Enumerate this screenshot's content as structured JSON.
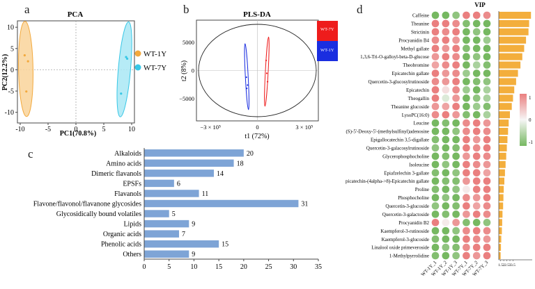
{
  "panels": {
    "a": "a",
    "b": "b",
    "c": "c",
    "d": "d"
  },
  "colors": {
    "wt1y": "#f3a93d",
    "wt1y_fill": "#f9d49a",
    "wt7y": "#37c7e6",
    "wt7y_fill": "#a9e8f5",
    "plsda_red": "#ee1c1c",
    "plsda_blue": "#1a2ee0",
    "bar": "#7ea4d6",
    "vip_bar": "#f3ae3c",
    "heat_high": "#ea7f7f",
    "heat_mid": "#f6f6f6",
    "heat_low": "#76b861"
  },
  "chart_data": [
    {
      "type": "scatter",
      "title": "PCA",
      "xlabel": "PC1(70.8%)",
      "ylabel": "PC2(12.2%)",
      "xlim": [
        -10.5,
        10.5
      ],
      "ylim": [
        -12.5,
        11.5
      ],
      "xticks": [
        "-10",
        "-5",
        "0",
        "5",
        "10"
      ],
      "yticks": [
        "10",
        "5",
        "0",
        "-5",
        "-10"
      ],
      "legend": "right",
      "series": [
        {
          "name": "WT-1Y",
          "points": [
            [
              -9.2,
              3.4
            ],
            [
              -8.6,
              2.0
            ],
            [
              -8.9,
              -5.1
            ]
          ],
          "ellipse": {
            "cx": -9.0,
            "cy": 0.2,
            "rx": 1.3,
            "ry": 11.2,
            "rot": -1
          }
        },
        {
          "name": "WT-7Y",
          "points": [
            [
              9.2,
              2.6
            ],
            [
              9.0,
              3.0
            ],
            [
              8.1,
              -5.6
            ]
          ],
          "ellipse": {
            "cx": 8.7,
            "cy": 0.1,
            "rx": 1.1,
            "ry": 11.2,
            "rot": 5
          }
        }
      ]
    },
    {
      "type": "scatter",
      "title": "PLS-DA",
      "xlabel": "t1 (72%)",
      "ylabel": "t2 (8%)",
      "xticks": [
        "−3 × 10⁵",
        "0",
        "3 × 10⁵"
      ],
      "yticks": [
        "5000",
        "0",
        "−5000"
      ],
      "xlim": [
        -390000,
        390000
      ],
      "ylim": [
        -9000,
        9000
      ],
      "legend": [
        "WT-7Y",
        "WT-1Y"
      ],
      "series": [
        {
          "name": "WT-7Y",
          "color": "red",
          "points": [
            [
              60000,
              -500
            ],
            [
              65000,
              -2000
            ],
            [
              56000,
              1800
            ]
          ],
          "ellipse": {
            "cx": 60000,
            "cy": -200,
            "rx": 9000,
            "ry": 6200,
            "rot": 3
          }
        },
        {
          "name": "WT-1Y",
          "color": "blue",
          "points": [
            [
              -63000,
              -2600
            ],
            [
              -70000,
              -1200
            ],
            [
              -68000,
              -3200
            ]
          ],
          "ellipse": {
            "cx": -68000,
            "cy": -1100,
            "rx": 9000,
            "ry": 5900,
            "rot": -3
          }
        }
      ]
    },
    {
      "type": "bar",
      "orientation": "horizontal",
      "categories": [
        "Alkaloids",
        "Amino acids",
        "Dimeric flavanols",
        "EPSFs",
        "Flavanols",
        "Flavone/flavonol/flavanone glycosides",
        "Glycosidically bound volatiles",
        "Lipids",
        "Organic acids",
        "Phenolic acids",
        "Others"
      ],
      "values": [
        20,
        18,
        14,
        6,
        11,
        31,
        5,
        9,
        7,
        15,
        9
      ],
      "xlim": [
        0,
        35
      ],
      "xticks": [
        "0",
        "5",
        "10",
        "15",
        "20",
        "25",
        "30",
        "35"
      ]
    },
    {
      "type": "heatmap",
      "title": "VIP",
      "columns": [
        "WT-1Y_1",
        "WT-1Y_2",
        "WT-1Y_3",
        "WT-7Y_1",
        "WT-7Y_2",
        "WT-7Y_3"
      ],
      "rows": [
        "Caffeine",
        "Theanine",
        "Strictinin",
        "Procyanidin B4",
        "Methyl gallate",
        "1,3,6-Tri-O-galloyl-beta-D-glucose",
        "Theobromine",
        "Epicatechin gallate",
        "Quercetin-3-glucosylrutinoside",
        "Epicatechin",
        "Theogallin",
        "Theanine glucoside",
        "LysoPC(16:0)",
        "Leucine",
        "(S)-5'-Deoxy-5'-(methylsulfinyl)adenosine",
        "Epigallocatechin 3,5-digallate",
        "Quercetin-3-galacosylrutinoside",
        "Glycerophosphocholine",
        "Isoleucine",
        "Epiafzelechin 3-gallate",
        "Epicatechin-(4alpha->8)-Epicatechin gallate",
        "Proline",
        "Phosphocholine",
        "Quercetin-3-glucoside",
        "Quercetin-3-galactoside",
        "Procyanidin B2",
        "Kaempferol-3-rutinoside",
        "Kaempferol-3-glucoside",
        "Linalool oxide primeveroside",
        "1-Methylpyrrolidine"
      ],
      "values": [
        [
          -1,
          -1,
          -0.8,
          1,
          1,
          0.9
        ],
        [
          1,
          1,
          0.9,
          -0.9,
          -1,
          -1
        ],
        [
          1,
          0.9,
          1,
          -1,
          -0.8,
          -1
        ],
        [
          0.9,
          1,
          0.8,
          -1,
          -1,
          -0.7
        ],
        [
          1,
          0.8,
          1,
          -0.9,
          -1,
          -1
        ],
        [
          0.8,
          1,
          0.9,
          -1,
          -0.8,
          -1
        ],
        [
          0.7,
          0.9,
          1,
          -1.2,
          -0.6,
          -0.9
        ],
        [
          1,
          0.8,
          0.9,
          -0.7,
          -1,
          -1
        ],
        [
          0.9,
          0.8,
          1,
          -1,
          -0.9,
          -0.8
        ],
        [
          1,
          0.2,
          0.9,
          -0.7,
          -1,
          -0.6
        ],
        [
          1,
          -0.2,
          0.8,
          -1,
          -0.8,
          -0.6
        ],
        [
          0.8,
          0.7,
          1,
          -1,
          -0.7,
          -0.9
        ],
        [
          0.9,
          1,
          0.8,
          -0.9,
          -1,
          -0.6
        ],
        [
          -1,
          -0.9,
          -1,
          0.9,
          1,
          0.8
        ],
        [
          -1,
          -1,
          -0.8,
          0.9,
          1,
          0.9
        ],
        [
          -0.9,
          -1,
          -1,
          1,
          0.8,
          1
        ],
        [
          -0.8,
          -1,
          -0.9,
          1,
          0.9,
          1
        ],
        [
          -1,
          -0.9,
          -1,
          0.8,
          1,
          0.9
        ],
        [
          -1,
          -0.8,
          -1,
          1,
          0.9,
          0.8
        ],
        [
          -0.9,
          -1,
          -0.8,
          1,
          1,
          0.7
        ],
        [
          -1,
          -0.9,
          -0.9,
          0.8,
          1,
          1
        ],
        [
          -0.9,
          -1,
          -0.8,
          0.1,
          1,
          1
        ],
        [
          -1,
          -0.8,
          -1,
          0.9,
          0.8,
          1
        ],
        [
          -0.8,
          -1,
          -0.9,
          1.1,
          0.7,
          0.9
        ],
        [
          -1,
          -0.9,
          -1,
          0.8,
          1,
          0.9
        ],
        [
          1,
          0.1,
          0.8,
          -0.9,
          -1,
          -0.8
        ],
        [
          -1,
          -1,
          -0.8,
          0.9,
          1,
          0.9
        ],
        [
          -0.9,
          -1,
          -1,
          1,
          0.9,
          0.8
        ],
        [
          -1,
          -0.8,
          -0.9,
          0.9,
          1,
          1
        ],
        [
          -0.9,
          -1,
          -0.8,
          1,
          0.8,
          1
        ]
      ],
      "vip": [
        6.4,
        6.1,
        6.0,
        5.6,
        5.3,
        5.0,
        4.7,
        4.3,
        4.0,
        3.7,
        3.5,
        3.3,
        3.0,
        2.8,
        2.7,
        2.6,
        2.5,
        2.4,
        2.3,
        2.2,
        2.1,
        2.0,
        1.95,
        1.9,
        1.8,
        1.75,
        1.7,
        1.6,
        1.55,
        1.5
      ],
      "vip_ticks": [
        "1.5",
        "2",
        "2.5",
        "3",
        "3.5"
      ],
      "legend_ticks": [
        "1",
        "0",
        "-1"
      ]
    }
  ]
}
